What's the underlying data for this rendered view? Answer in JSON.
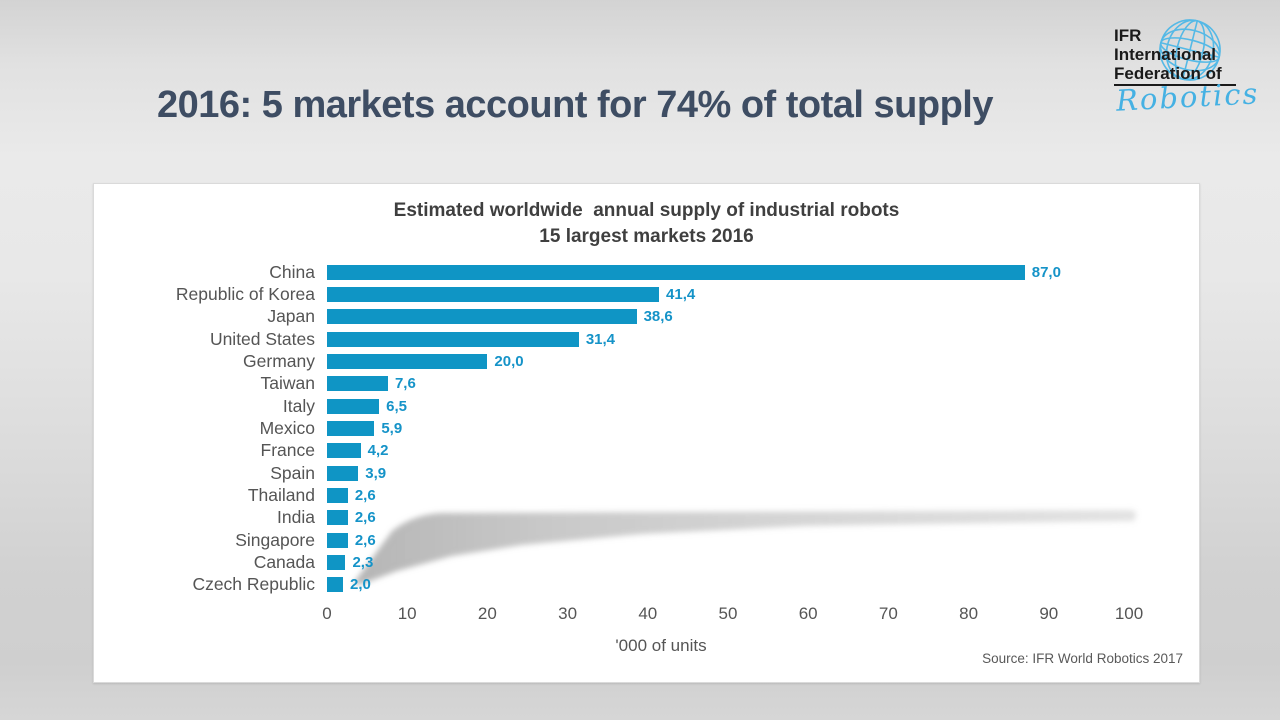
{
  "slide": {
    "title": "2016: 5 markets account for 74% of total supply",
    "source": "Source: IFR World Robotics 2017"
  },
  "logo": {
    "line1": "IFR",
    "line2": "International",
    "line3": "Federation of",
    "script": "Robotics",
    "globe_icon": "globe-wireframe-icon",
    "script_color": "#45b1e3",
    "globe_color": "#54b9e6"
  },
  "chart_data": {
    "type": "bar",
    "orientation": "horizontal",
    "title_line1": "Estimated worldwide  annual supply of industrial robots",
    "title_line2": "15 largest markets 2016",
    "categories": [
      "China",
      "Republic of Korea",
      "Japan",
      "United States",
      "Germany",
      "Taiwan",
      "Italy",
      "Mexico",
      "France",
      "Spain",
      "Thailand",
      "India",
      "Singapore",
      "Canada",
      "Czech Republic"
    ],
    "values": [
      87.0,
      41.4,
      38.6,
      31.4,
      20.0,
      7.6,
      6.5,
      5.9,
      4.2,
      3.9,
      2.6,
      2.6,
      2.6,
      2.3,
      2.0
    ],
    "value_labels": [
      "87,0",
      "41,4",
      "38,6",
      "31,4",
      "20,0",
      "7,6",
      "6,5",
      "5,9",
      "4,2",
      "3,9",
      "2,6",
      "2,6",
      "2,6",
      "2,3",
      "2,0"
    ],
    "xlabel": "'000 of units",
    "x_ticks": [
      0,
      10,
      20,
      30,
      40,
      50,
      60,
      70,
      80,
      90,
      100
    ],
    "xlim": [
      0,
      100
    ],
    "grid": false,
    "legend": false,
    "bar_color": "#0f95c5",
    "value_label_color": "#1593c8",
    "category_label_color": "#555555",
    "title_color": "#3f3f3f"
  }
}
